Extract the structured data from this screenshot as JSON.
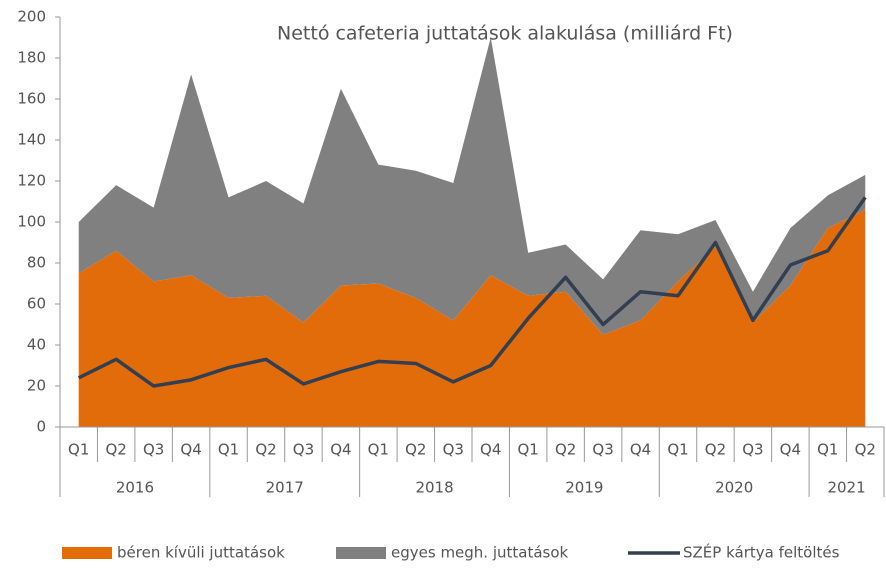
{
  "chart_data": {
    "type": "stacked-area-line",
    "title": "Nettó cafeteria juttatások alakulása (milliárd Ft)",
    "categories": [
      "Q1",
      "Q2",
      "Q3",
      "Q4",
      "Q1",
      "Q2",
      "Q3",
      "Q4",
      "Q1",
      "Q2",
      "Q3",
      "Q4",
      "Q1",
      "Q2",
      "Q3",
      "Q4",
      "Q1",
      "Q2",
      "Q3",
      "Q4",
      "Q1",
      "Q2"
    ],
    "x_groups": [
      {
        "label": "2016",
        "count": 4
      },
      {
        "label": "2017",
        "count": 4
      },
      {
        "label": "2018",
        "count": 4
      },
      {
        "label": "2019",
        "count": 4
      },
      {
        "label": "2020",
        "count": 4
      },
      {
        "label": "2021",
        "count": 2
      }
    ],
    "series": [
      {
        "name": "béren kívüli juttatások",
        "color": "#e36c0a",
        "kind": "area",
        "values": [
          75,
          86,
          71,
          74,
          63,
          64,
          51,
          69,
          70,
          63,
          52,
          74,
          64,
          66,
          45,
          52,
          71,
          88,
          51,
          69,
          97,
          106
        ]
      },
      {
        "name": "egyes megh. juttatások",
        "color": "#808080",
        "kind": "area",
        "values": [
          25,
          32,
          36,
          98,
          49,
          56,
          58,
          96,
          58,
          62,
          67,
          116,
          21,
          23,
          27,
          44,
          23,
          13,
          15,
          28,
          16,
          17
        ]
      },
      {
        "name": "SZÉP kártya feltöltés",
        "color": "#333f50",
        "kind": "line",
        "values": [
          24,
          33,
          20,
          23,
          29,
          33,
          21,
          27,
          32,
          31,
          22,
          30,
          53,
          73,
          50,
          66,
          64,
          90,
          52,
          79,
          86,
          112
        ]
      }
    ],
    "ylim": [
      0,
      200
    ],
    "yticks": [
      0,
      20,
      40,
      60,
      80,
      100,
      120,
      140,
      160,
      180,
      200
    ],
    "grid": false
  }
}
